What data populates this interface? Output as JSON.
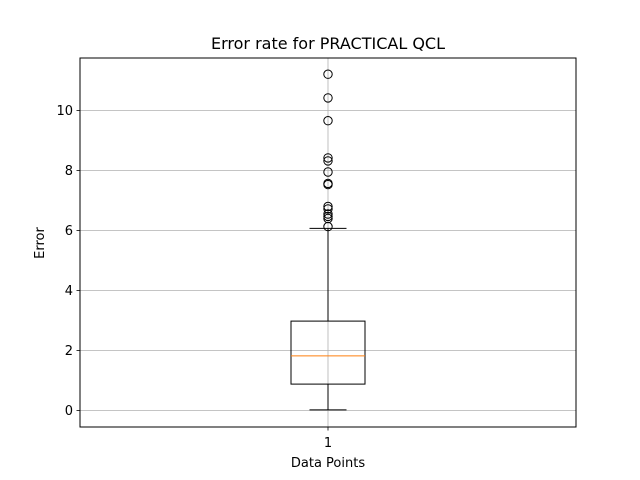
{
  "chart_data": {
    "type": "box",
    "title": "Error rate for PRACTICAL QCL",
    "xlabel": "Data Points",
    "ylabel": "Error",
    "categories": [
      "1"
    ],
    "ylim": [
      -0.55,
      11.75
    ],
    "yticks": [
      0,
      2,
      4,
      6,
      8,
      10
    ],
    "grid": true,
    "box": {
      "whisker_low": 0.02,
      "q1": 0.88,
      "median": 1.82,
      "q3": 2.98,
      "whisker_high": 6.07
    },
    "outliers": [
      6.13,
      6.4,
      6.47,
      6.55,
      6.72,
      6.8,
      7.53,
      7.57,
      7.95,
      8.32,
      8.42,
      9.66,
      10.42,
      11.21
    ],
    "colors": {
      "box": "#000000",
      "median": "#ff7f0e",
      "grid": "#b0b0b0"
    }
  }
}
